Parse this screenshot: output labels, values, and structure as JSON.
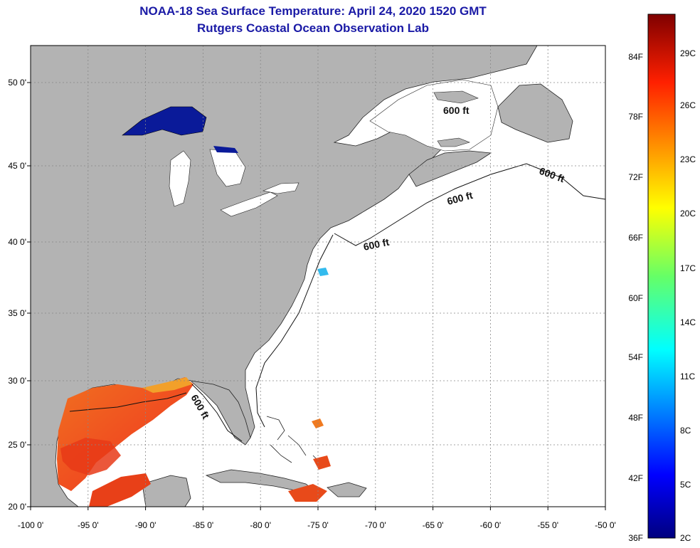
{
  "header": {
    "title": "NOAA-18 Sea Surface Temperature:  April 24, 2020 1520 GMT",
    "subtitle": "Rutgers Coastal Ocean Observation Lab"
  },
  "axes": {
    "x_ticks": [
      "-100 0'",
      "-95 0'",
      "-90 0'",
      "-85 0'",
      "-80 0'",
      "-75 0'",
      "-70 0'",
      "-65 0'",
      "-60 0'",
      "-55 0'",
      "-50 0'"
    ],
    "y_ticks": [
      "50 0'",
      "45 0'",
      "40 0'",
      "35 0'",
      "30 0'",
      "25 0'",
      "20 0'"
    ]
  },
  "contour_label": "600 ft",
  "colorbar": {
    "f_labels": [
      "84F",
      "78F",
      "72F",
      "66F",
      "60F",
      "54F",
      "48F",
      "42F",
      "36F"
    ],
    "c_labels": [
      "29C",
      "26C",
      "23C",
      "20C",
      "17C",
      "14C",
      "11C",
      "8C",
      "5C",
      "2C"
    ]
  },
  "colors": {
    "land": "#b3b3b3",
    "ocean": "#ffffff",
    "title": "#1a1aa6",
    "cold_lake": "#0a1a99"
  }
}
